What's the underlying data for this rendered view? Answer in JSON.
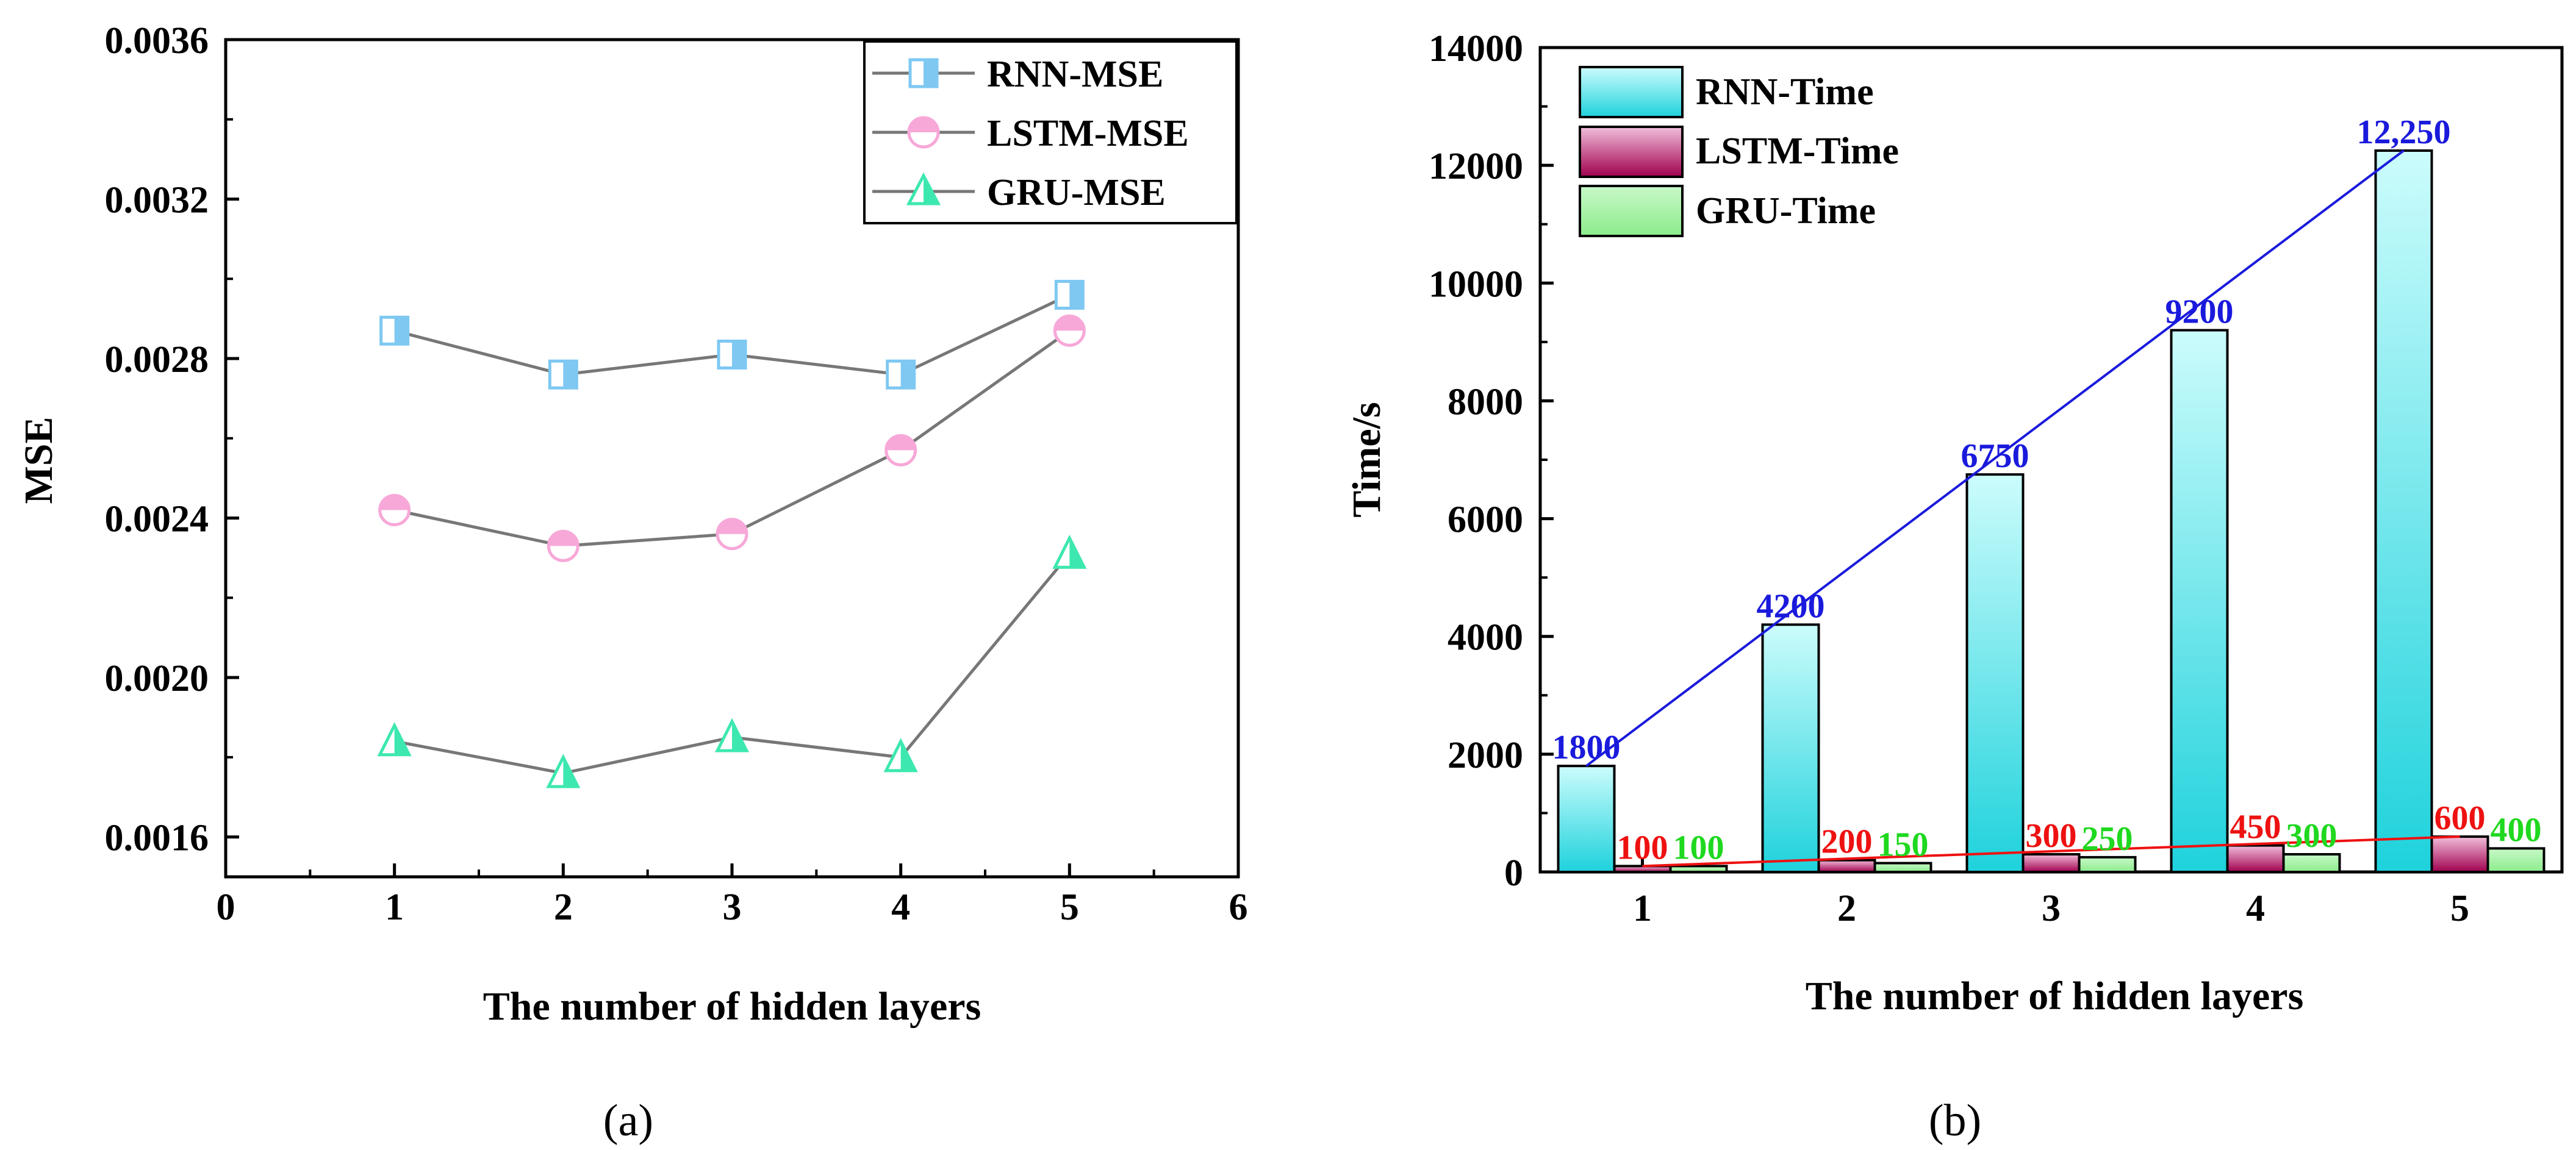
{
  "chart_data": [
    {
      "type": "line",
      "caption": "(a)",
      "title": "",
      "xlabel": "The number of hidden layers",
      "ylabel": "MSE",
      "xlim": [
        0,
        6
      ],
      "ylim": [
        0.0015,
        0.0036
      ],
      "x_ticks": [
        0,
        1,
        2,
        3,
        4,
        5,
        6
      ],
      "x_tick_labels": [
        "0",
        "1",
        "2",
        "3",
        "4",
        "5",
        "6"
      ],
      "y_ticks": [
        0.0016,
        0.002,
        0.0024,
        0.0028,
        0.0032,
        0.0036
      ],
      "y_tick_labels": [
        "0.0016",
        "0.0020",
        "0.0024",
        "0.0028",
        "0.0032",
        "0.0036"
      ],
      "x": [
        1,
        2,
        3,
        4,
        5
      ],
      "legend_position": "top-right",
      "series": [
        {
          "name": "RNN-MSE",
          "marker": "square",
          "color": "#7ec8f2",
          "values": [
            0.00287,
            0.00276,
            0.00281,
            0.00276,
            0.00296
          ]
        },
        {
          "name": "LSTM-MSE",
          "marker": "circle",
          "color": "#f7a8d8",
          "values": [
            0.00242,
            0.00233,
            0.00236,
            0.00257,
            0.00287
          ]
        },
        {
          "name": "GRU-MSE",
          "marker": "triangle",
          "color": "#3de8b0",
          "values": [
            0.00184,
            0.00176,
            0.00185,
            0.0018,
            0.00231
          ]
        }
      ],
      "line_color": "#777777"
    },
    {
      "type": "bar",
      "caption": "(b)",
      "title": "",
      "xlabel": "The number of hidden layers",
      "ylabel": "Time/s",
      "ylim": [
        0,
        14000
      ],
      "y_ticks": [
        0,
        2000,
        4000,
        6000,
        8000,
        10000,
        12000,
        14000
      ],
      "y_tick_labels": [
        "0",
        "2000",
        "4000",
        "6000",
        "8000",
        "10000",
        "12000",
        "14000"
      ],
      "categories": [
        "1",
        "2",
        "3",
        "4",
        "5"
      ],
      "legend_position": "top-left",
      "series": [
        {
          "name": "RNN-Time",
          "color_top": "#ccfcfc",
          "color_bottom": "#1ed2dc",
          "label_color": "#1a1adc",
          "values": [
            1800,
            4200,
            6750,
            9200,
            12250
          ],
          "labels": [
            "1800",
            "4200",
            "6750",
            "9200",
            "12,250"
          ]
        },
        {
          "name": "LSTM-Time",
          "color_top": "#f2bedb",
          "color_bottom": "#a0004e",
          "label_color": "#ee1111",
          "values": [
            100,
            200,
            300,
            450,
            600
          ],
          "labels": [
            "100",
            "200",
            "300",
            "450",
            "600"
          ]
        },
        {
          "name": "GRU-Time",
          "color_top": "#c8f8c8",
          "color_bottom": "#8cec8c",
          "label_color": "#1fd81f",
          "values": [
            100,
            150,
            250,
            300,
            400
          ],
          "labels": [
            "100",
            "150",
            "250",
            "300",
            "400"
          ]
        }
      ],
      "trend_lines": [
        {
          "series": "RNN-Time",
          "color": "#1a1adc",
          "from": 1800,
          "to": 12250
        },
        {
          "series": "LSTM-Time",
          "color": "#ee1111",
          "from": 100,
          "to": 600
        }
      ]
    }
  ]
}
